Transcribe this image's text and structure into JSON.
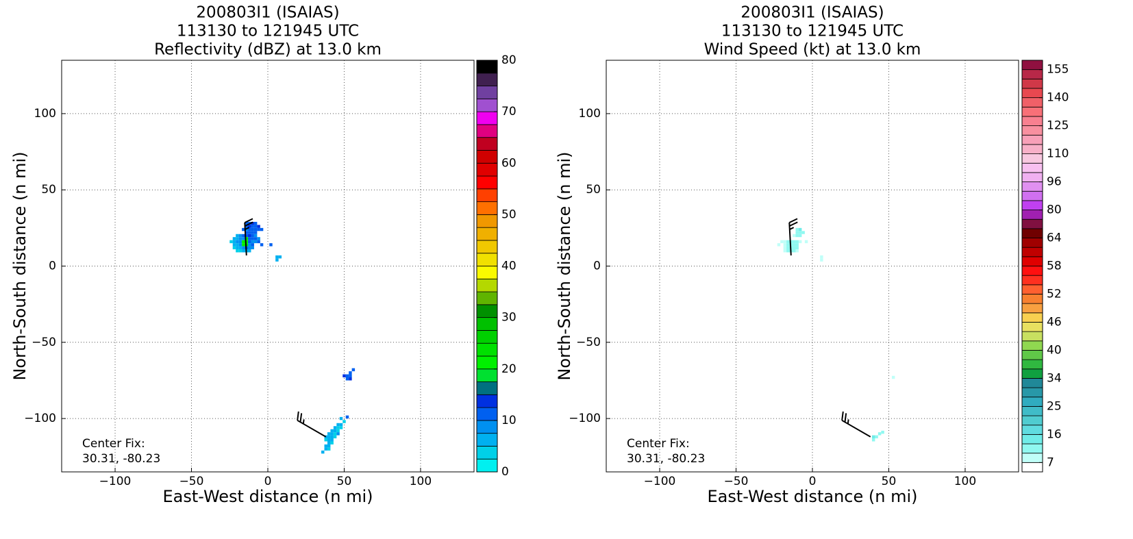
{
  "chart_data": [
    {
      "type": "heatmap",
      "title": [
        "200803I1 (ISAIAS)",
        "113130 to 121945 UTC",
        "Reflectivity (dBZ) at 13.0 km"
      ],
      "xlabel": "East-West distance (n mi)",
      "ylabel": "North-South distance (n mi)",
      "xlim": [
        -135,
        135
      ],
      "ylim": [
        -135,
        135
      ],
      "xticks": [
        {
          "value": -100,
          "label": "−100"
        },
        {
          "value": -50,
          "label": "−50"
        },
        0,
        50,
        100
      ],
      "yticks": [
        {
          "value": -100,
          "label": "−100"
        },
        {
          "value": -50,
          "label": "−50"
        },
        0,
        50,
        100
      ],
      "grid": true,
      "cell_size": 2,
      "annotation": [
        "Center Fix:",
        "30.31, -80.23"
      ],
      "cells": [
        [
          -14,
          28,
          11
        ],
        [
          -12,
          28,
          12
        ],
        [
          -10,
          28,
          13
        ],
        [
          -8,
          28,
          12
        ],
        [
          -14,
          26,
          12
        ],
        [
          -12,
          26,
          13
        ],
        [
          -10,
          26,
          12
        ],
        [
          -8,
          26,
          11
        ],
        [
          -6,
          26,
          13
        ],
        [
          -4,
          24,
          12
        ],
        [
          -16,
          24,
          11
        ],
        [
          -14,
          24,
          9
        ],
        [
          -12,
          24,
          10
        ],
        [
          -10,
          24,
          11
        ],
        [
          -8,
          24,
          12
        ],
        [
          -6,
          24,
          11
        ],
        [
          -14,
          22,
          10
        ],
        [
          -12,
          22,
          11
        ],
        [
          -10,
          22,
          12
        ],
        [
          -8,
          22,
          10
        ],
        [
          -20,
          20,
          6
        ],
        [
          -18,
          20,
          8
        ],
        [
          -16,
          20,
          10
        ],
        [
          -14,
          20,
          11
        ],
        [
          -12,
          20,
          13
        ],
        [
          -10,
          20,
          10
        ],
        [
          -8,
          20,
          9
        ],
        [
          -22,
          18,
          5
        ],
        [
          -20,
          18,
          7
        ],
        [
          -18,
          18,
          9
        ],
        [
          -16,
          18,
          8
        ],
        [
          -14,
          18,
          20
        ],
        [
          -12,
          18,
          12
        ],
        [
          -10,
          18,
          11
        ],
        [
          -8,
          18,
          10
        ],
        [
          -6,
          18,
          9
        ],
        [
          -24,
          16,
          4
        ],
        [
          -22,
          16,
          6
        ],
        [
          -20,
          16,
          8
        ],
        [
          -18,
          16,
          9
        ],
        [
          -16,
          16,
          20
        ],
        [
          -14,
          16,
          22
        ],
        [
          -12,
          16,
          10
        ],
        [
          -10,
          16,
          9
        ],
        [
          -8,
          16,
          8
        ],
        [
          -6,
          16,
          10
        ],
        [
          -22,
          14,
          5
        ],
        [
          -20,
          14,
          6
        ],
        [
          -18,
          14,
          8
        ],
        [
          -16,
          14,
          21
        ],
        [
          -14,
          14,
          23
        ],
        [
          -12,
          14,
          9
        ],
        [
          -10,
          14,
          12
        ],
        [
          -4,
          14,
          12
        ],
        [
          2,
          14,
          12
        ],
        [
          -22,
          12,
          4
        ],
        [
          -20,
          12,
          5
        ],
        [
          -18,
          12,
          7
        ],
        [
          -16,
          12,
          9
        ],
        [
          -14,
          12,
          11
        ],
        [
          -12,
          12,
          9
        ],
        [
          -10,
          12,
          8
        ],
        [
          -20,
          10,
          3
        ],
        [
          -18,
          10,
          4
        ],
        [
          -16,
          10,
          5
        ],
        [
          -14,
          10,
          6
        ],
        [
          -12,
          10,
          6
        ],
        [
          6,
          6,
          5
        ],
        [
          8,
          6,
          6
        ],
        [
          6,
          4,
          7
        ],
        [
          52,
          -72,
          12
        ],
        [
          54,
          -72,
          12
        ],
        [
          50,
          -72,
          13
        ],
        [
          54,
          -70,
          12
        ],
        [
          56,
          -68,
          11
        ],
        [
          52,
          -74,
          11
        ],
        [
          54,
          -74,
          13
        ],
        [
          52,
          -99,
          12
        ],
        [
          48,
          -100,
          6
        ],
        [
          50,
          -102,
          4
        ],
        [
          46,
          -104,
          5
        ],
        [
          48,
          -104,
          7
        ],
        [
          44,
          -106,
          6
        ],
        [
          46,
          -106,
          4
        ],
        [
          48,
          -106,
          3
        ],
        [
          42,
          -108,
          5
        ],
        [
          44,
          -108,
          7
        ],
        [
          46,
          -108,
          3
        ],
        [
          40,
          -110,
          6
        ],
        [
          42,
          -110,
          5
        ],
        [
          44,
          -110,
          4
        ],
        [
          46,
          -110,
          8
        ],
        [
          38,
          -112,
          5
        ],
        [
          40,
          -112,
          7
        ],
        [
          42,
          -112,
          6
        ],
        [
          44,
          -112,
          4
        ],
        [
          38,
          -114,
          3
        ],
        [
          40,
          -114,
          5
        ],
        [
          42,
          -114,
          6
        ],
        [
          40,
          -116,
          6
        ],
        [
          42,
          -116,
          4
        ],
        [
          38,
          -118,
          5
        ],
        [
          40,
          -118,
          6
        ],
        [
          38,
          -120,
          7
        ],
        [
          40,
          -120,
          4
        ],
        [
          36,
          -122,
          6
        ]
      ],
      "barbs": [
        {
          "x": -14,
          "y": 7,
          "direction": 357,
          "speed": 25
        },
        {
          "x": 38,
          "y": -112,
          "direction": 300,
          "speed": 25
        }
      ],
      "colorbar": {
        "levels": [
          0,
          2.5,
          5,
          7.5,
          10,
          12.5,
          15,
          17.5,
          20,
          22.5,
          25,
          27.5,
          30,
          32.5,
          35,
          37.5,
          40,
          42.5,
          45,
          47.5,
          50,
          52.5,
          55,
          57.5,
          60,
          62.5,
          65,
          67.5,
          70,
          72.5,
          75,
          77.5,
          80
        ],
        "colors": [
          "#00f0f0",
          "#00d0e8",
          "#00b0f0",
          "#0090f0",
          "#0060f0",
          "#0030e0",
          "#007080",
          "#00e030",
          "#00f000",
          "#00e000",
          "#00d000",
          "#00c000",
          "#009000",
          "#60b400",
          "#b4d800",
          "#fafa00",
          "#f0e000",
          "#f0c800",
          "#f0b000",
          "#f09800",
          "#ff7000",
          "#ff4000",
          "#ff0000",
          "#e00000",
          "#d00000",
          "#c00020",
          "#e00080",
          "#f000f0",
          "#a050d0",
          "#7040a0",
          "#402050",
          "#000000"
        ],
        "ticks": [
          0,
          10,
          20,
          30,
          40,
          50,
          60,
          70,
          80
        ]
      }
    },
    {
      "type": "heatmap",
      "title": [
        "200803I1 (ISAIAS)",
        "113130 to 121945 UTC",
        "Wind Speed (kt) at 13.0 km"
      ],
      "xlabel": "East-West distance (n mi)",
      "ylabel": "North-South distance (n mi)",
      "xlim": [
        -135,
        135
      ],
      "ylim": [
        -135,
        135
      ],
      "xticks": [
        {
          "value": -100,
          "label": "−100"
        },
        {
          "value": -50,
          "label": "−50"
        },
        0,
        50,
        100
      ],
      "yticks": [
        {
          "value": -100,
          "label": "−100"
        },
        {
          "value": -50,
          "label": "−50"
        },
        0,
        50,
        100
      ],
      "grid": true,
      "cell_size": 2,
      "annotation": [
        "Center Fix:",
        "30.31, -80.23"
      ],
      "cells": [
        [
          -10,
          24,
          12
        ],
        [
          -8,
          24,
          13
        ],
        [
          -10,
          22,
          11
        ],
        [
          -8,
          22,
          12
        ],
        [
          -6,
          22,
          10
        ],
        [
          -12,
          20,
          9
        ],
        [
          -10,
          20,
          10
        ],
        [
          -8,
          20,
          11
        ],
        [
          -20,
          16,
          8
        ],
        [
          -18,
          16,
          9
        ],
        [
          -16,
          16,
          10
        ],
        [
          -14,
          16,
          11
        ],
        [
          -12,
          16,
          12
        ],
        [
          -10,
          16,
          10
        ],
        [
          -8,
          16,
          9
        ],
        [
          -4,
          16,
          8
        ],
        [
          -22,
          14,
          7
        ],
        [
          -18,
          14,
          8
        ],
        [
          -16,
          14,
          10
        ],
        [
          -14,
          14,
          12
        ],
        [
          -12,
          14,
          11
        ],
        [
          -10,
          14,
          10
        ],
        [
          -18,
          12,
          9
        ],
        [
          -16,
          12,
          10
        ],
        [
          -14,
          12,
          11
        ],
        [
          -12,
          12,
          12
        ],
        [
          -10,
          12,
          10
        ],
        [
          -18,
          10,
          8
        ],
        [
          -16,
          10,
          11
        ],
        [
          -14,
          10,
          12
        ],
        [
          -12,
          10,
          10
        ],
        [
          -10,
          10,
          9
        ],
        [
          6,
          4,
          8
        ],
        [
          6,
          6,
          9
        ],
        [
          53,
          -73,
          9
        ],
        [
          40,
          -112,
          13
        ],
        [
          42,
          -112,
          12
        ],
        [
          44,
          -110,
          11
        ],
        [
          40,
          -114,
          12
        ],
        [
          46,
          -109,
          10
        ]
      ],
      "barbs": [
        {
          "x": -14,
          "y": 7,
          "direction": 357,
          "speed": 25
        },
        {
          "x": 38,
          "y": -112,
          "direction": 300,
          "speed": 25
        }
      ],
      "colorbar": {
        "levels": [
          4,
          7,
          10,
          13,
          16,
          19,
          22,
          25,
          28,
          31,
          34,
          36,
          38,
          40,
          42,
          44,
          46,
          48,
          50,
          52,
          54,
          56,
          58,
          60,
          62,
          64,
          69,
          75,
          80,
          85,
          91,
          96,
          101,
          105,
          110,
          115,
          120,
          125,
          130,
          135,
          140,
          145,
          150,
          155,
          160
        ],
        "colors": [
          "#ffffff",
          "#c0fff8",
          "#90f8f0",
          "#70ece8",
          "#60dce0",
          "#50ccd0",
          "#40bcc8",
          "#30acc0",
          "#2898a8",
          "#208898",
          "#10a040",
          "#30b840",
          "#60c848",
          "#90d850",
          "#c8e060",
          "#e8e060",
          "#f8d050",
          "#f8a040",
          "#f88030",
          "#ff6030",
          "#ff3020",
          "#ff1010",
          "#e00000",
          "#c00000",
          "#a00000",
          "#700000",
          "#801040",
          "#a020b0",
          "#c040f0",
          "#d070f0",
          "#e090f0",
          "#f0b0f0",
          "#f8c0f0",
          "#f8c8e0",
          "#f8b0c8",
          "#f8a0b8",
          "#f890a0",
          "#f88090",
          "#f87078",
          "#f06068",
          "#e84850",
          "#d03848",
          "#b82848",
          "#901040"
        ],
        "ticks": [
          7,
          16,
          25,
          34,
          40,
          46,
          52,
          58,
          64,
          80,
          96,
          110,
          125,
          140,
          155
        ]
      }
    }
  ]
}
